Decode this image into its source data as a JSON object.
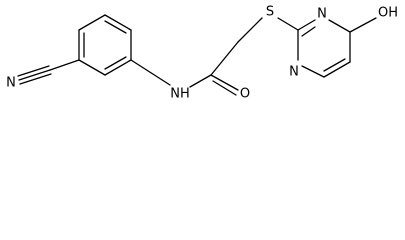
{
  "atoms": [
    "N",
    "NH",
    "O",
    "S",
    "N",
    "N",
    "OH"
  ]
}
